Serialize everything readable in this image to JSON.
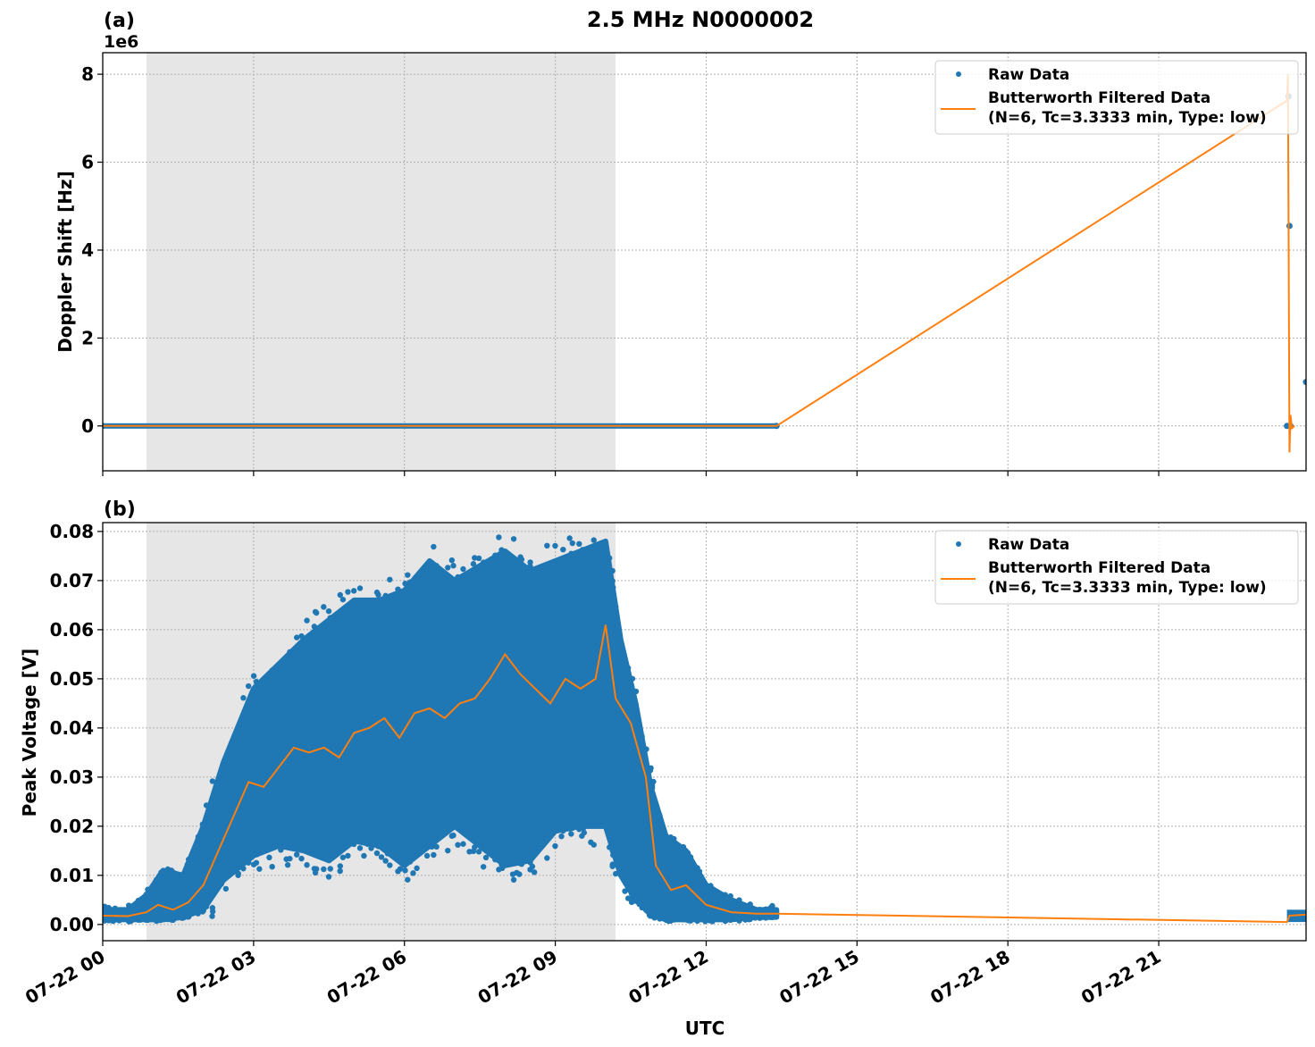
{
  "figure": {
    "title": "2.5 MHz N0000002",
    "xlabel": "UTC",
    "xticks": [
      "07-22 00",
      "07-22 03",
      "07-22 06",
      "07-22 09",
      "07-22 12",
      "07-22 15",
      "07-22 18",
      "07-22 21"
    ]
  },
  "legend": {
    "raw": "Raw Data",
    "filtered_line1": "Butterworth Filtered Data",
    "filtered_line2": "(N=6, Tc=3.3333 min, Type: low)"
  },
  "colors": {
    "raw": "#1f77b4",
    "filtered": "#ff7f0e",
    "shade": "#e6e6e6"
  },
  "chart_data": [
    {
      "type": "scatter",
      "panel_label": "(a)",
      "title": "2.5 MHz N0000002",
      "xlabel": "",
      "ylabel": "Doppler Shift [Hz]",
      "y_offset_label": "1e6",
      "yticks": [
        "0",
        "2",
        "4",
        "6",
        "8"
      ],
      "ylim": [
        -1.02,
        8.49
      ],
      "xlim_hours": [
        0,
        23.93
      ],
      "grid": true,
      "legend_position": "upper right",
      "shaded_region_hours": [
        0.87,
        10.2
      ],
      "series": [
        {
          "name": "Raw Data",
          "style": "points",
          "x_hours": [
            0,
            13.4,
            23.55,
            23.58,
            23.6,
            23.62,
            23.93
          ],
          "values_1e6": [
            0,
            0,
            0,
            7.5,
            4.55,
            0,
            1.0
          ]
        },
        {
          "name": "Butterworth Filtered Data (N=6, Tc=3.3333 min, Type: low)",
          "style": "line",
          "x_hours": [
            0,
            13.4,
            23.55,
            23.57,
            23.6,
            23.62,
            23.65,
            23.7
          ],
          "values_1e6": [
            0,
            0,
            7.4,
            8.0,
            -0.6,
            0.25,
            -0.05,
            0
          ]
        }
      ]
    },
    {
      "type": "scatter",
      "panel_label": "(b)",
      "xlabel": "UTC",
      "ylabel": "Peak Voltage [V]",
      "yticks": [
        "0.00",
        "0.01",
        "0.02",
        "0.03",
        "0.04",
        "0.05",
        "0.06",
        "0.07",
        "0.08"
      ],
      "ylim": [
        -0.0033,
        0.0818
      ],
      "xlim_hours": [
        0,
        23.93
      ],
      "grid": true,
      "legend_position": "upper right",
      "shaded_region_hours": [
        0.87,
        10.2
      ],
      "series": [
        {
          "name": "Raw Data",
          "style": "points-band",
          "x_hours": [
            0,
            0.5,
            0.87,
            1.2,
            1.6,
            2.0,
            2.4,
            3.0,
            3.5,
            4.0,
            4.5,
            5.0,
            5.5,
            6.0,
            6.5,
            7.0,
            7.5,
            8.0,
            8.5,
            9.0,
            9.5,
            10.0,
            10.3,
            10.6,
            10.9,
            11.2,
            11.6,
            12.0,
            12.5,
            13.0,
            13.4
          ],
          "upper": [
            0.003,
            0.003,
            0.006,
            0.011,
            0.01,
            0.02,
            0.033,
            0.048,
            0.053,
            0.058,
            0.062,
            0.066,
            0.066,
            0.068,
            0.074,
            0.07,
            0.073,
            0.076,
            0.072,
            0.074,
            0.076,
            0.078,
            0.058,
            0.045,
            0.028,
            0.018,
            0.015,
            0.008,
            0.005,
            0.003,
            0.003
          ],
          "lower": [
            0.001,
            0.001,
            0.001,
            0.001,
            0.0015,
            0.003,
            0.009,
            0.014,
            0.016,
            0.015,
            0.013,
            0.017,
            0.016,
            0.012,
            0.016,
            0.02,
            0.016,
            0.012,
            0.013,
            0.019,
            0.02,
            0.02,
            0.01,
            0.005,
            0.002,
            0.001,
            0.001,
            0.001,
            0.001,
            0.0015,
            0.0015
          ]
        },
        {
          "name": "Butterworth Filtered Data (N=6, Tc=3.3333 min, Type: low)",
          "style": "line",
          "x_hours": [
            0,
            0.5,
            0.87,
            1.1,
            1.4,
            1.7,
            2.0,
            2.3,
            2.6,
            2.9,
            3.2,
            3.5,
            3.8,
            4.1,
            4.4,
            4.7,
            5.0,
            5.3,
            5.6,
            5.9,
            6.2,
            6.5,
            6.8,
            7.1,
            7.4,
            7.7,
            8.0,
            8.3,
            8.6,
            8.9,
            9.2,
            9.5,
            9.8,
            10.0,
            10.2,
            10.5,
            10.8,
            11.0,
            11.3,
            11.6,
            12.0,
            12.5,
            13.0,
            13.4,
            23.55,
            23.6,
            23.93
          ],
          "values": [
            0.0018,
            0.0017,
            0.0025,
            0.004,
            0.003,
            0.0045,
            0.008,
            0.015,
            0.022,
            0.029,
            0.028,
            0.032,
            0.036,
            0.035,
            0.036,
            0.034,
            0.039,
            0.04,
            0.042,
            0.038,
            0.043,
            0.044,
            0.042,
            0.045,
            0.046,
            0.05,
            0.055,
            0.051,
            0.048,
            0.045,
            0.05,
            0.048,
            0.05,
            0.061,
            0.046,
            0.041,
            0.03,
            0.012,
            0.007,
            0.008,
            0.004,
            0.0025,
            0.0022,
            0.0022,
            0.0005,
            0.0018,
            0.002
          ]
        }
      ]
    }
  ]
}
